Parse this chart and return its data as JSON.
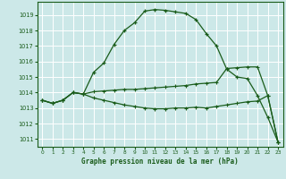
{
  "bg_color": "#cce8e8",
  "grid_color": "#b8d8d8",
  "line_color": "#1a5c1a",
  "title": "Graphe pression niveau de la mer (hPa)",
  "ylim": [
    1010.5,
    1019.85
  ],
  "xlim": [
    -0.5,
    23.5
  ],
  "yticks": [
    1011,
    1012,
    1013,
    1014,
    1015,
    1016,
    1017,
    1018,
    1019
  ],
  "xticks": [
    0,
    1,
    2,
    3,
    4,
    5,
    6,
    7,
    8,
    9,
    10,
    11,
    12,
    13,
    14,
    15,
    16,
    17,
    18,
    19,
    20,
    21,
    22,
    23
  ],
  "line1": [
    1013.5,
    1013.3,
    1013.5,
    1014.0,
    1013.9,
    1015.3,
    1015.9,
    1017.1,
    1018.0,
    1018.5,
    1019.25,
    1019.35,
    1019.3,
    1019.2,
    1019.1,
    1018.7,
    1017.8,
    1017.0,
    1015.5,
    1015.0,
    1014.9,
    1013.8,
    1012.4,
    1010.8
  ],
  "line2": [
    1013.5,
    1013.3,
    1013.5,
    1014.0,
    1013.9,
    1014.05,
    1014.1,
    1014.15,
    1014.2,
    1014.2,
    1014.25,
    1014.3,
    1014.35,
    1014.4,
    1014.45,
    1014.55,
    1014.6,
    1014.65,
    1015.55,
    1015.6,
    1015.65,
    1015.65,
    1013.8,
    1010.8
  ],
  "line3": [
    1013.5,
    1013.3,
    1013.5,
    1014.0,
    1013.9,
    1013.65,
    1013.5,
    1013.35,
    1013.2,
    1013.1,
    1013.0,
    1012.95,
    1012.95,
    1013.0,
    1013.0,
    1013.05,
    1013.0,
    1013.1,
    1013.2,
    1013.3,
    1013.4,
    1013.45,
    1013.8,
    1010.8
  ]
}
